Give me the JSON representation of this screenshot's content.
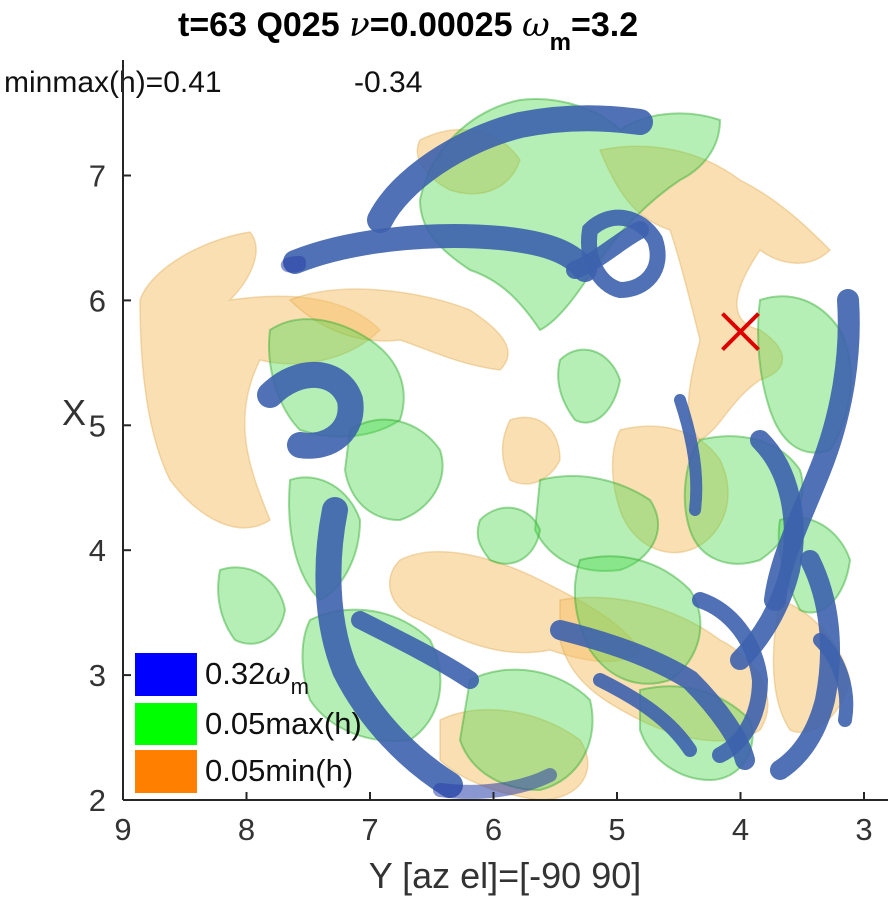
{
  "chart_data": {
    "type": "scatter",
    "title": {
      "main": "t=63  Q025  ",
      "nu_sym": "ν",
      "nu_rest": "=0.00025  ",
      "omega_sym": "ω",
      "omega_sub": "m",
      "omega_rest": "=3.2"
    },
    "info": {
      "prefix": "minmax(h)=",
      "max": "0.41",
      "min": "-0.34"
    },
    "xlabel": "Y  [az el]=[-90 90]",
    "ylabel": "X",
    "xlim": [
      9,
      3
    ],
    "ylim": [
      2,
      7.6
    ],
    "x_ticks": [
      9,
      8,
      7,
      6,
      5,
      4,
      3
    ],
    "y_ticks": [
      2,
      3,
      4,
      5,
      6,
      7
    ],
    "marker": {
      "x": 4,
      "y": 5.75,
      "symbol": "x",
      "color": "#dd0000"
    },
    "legend": [
      {
        "label": "0.32",
        "omega_sym": "ω",
        "omega_sub": "m",
        "color": "#0000ff"
      },
      {
        "label": "0.05max(h)",
        "color": "#00ff00"
      },
      {
        "label": "0.05min(h)",
        "color": "#ff7f00"
      }
    ],
    "surfaces": [
      {
        "name": "vorticity",
        "color": "#3a5fae",
        "opacity": 0.85
      },
      {
        "name": "h_max",
        "color": "#4fd94f",
        "opacity": 0.42
      },
      {
        "name": "h_min",
        "color": "#f5c068",
        "opacity": 0.5
      }
    ]
  }
}
